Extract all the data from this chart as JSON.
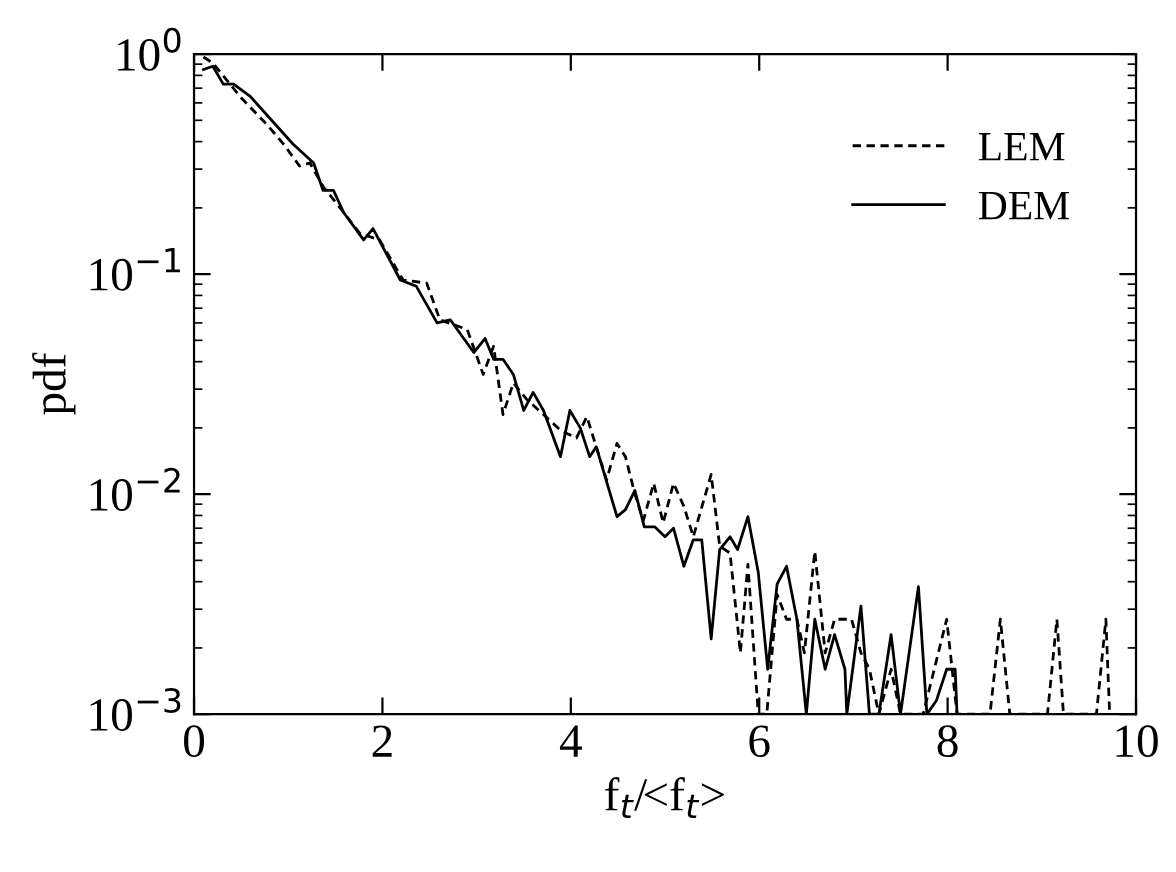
{
  "chart_data": {
    "type": "line",
    "xlabel": "f$_{t}$/<f$_{t}$>",
    "ylabel": "pdf",
    "xlim": [
      0,
      10
    ],
    "xticks": [
      0,
      2,
      4,
      6,
      8,
      10
    ],
    "ylim": [
      0.001,
      1
    ],
    "yticks": [
      {
        "value": 0.001,
        "label": "10$^{−3}$"
      },
      {
        "value": 0.01,
        "label": "10$^{−2}$"
      },
      {
        "value": 0.1,
        "label": "10$^{−1}$"
      },
      {
        "value": 1,
        "label": "10$^{0}$"
      }
    ],
    "log": "y",
    "grid": false,
    "legend": "top right",
    "marker": "none",
    "series": [
      {
        "name": "LEM",
        "color": "#000000",
        "line_style": "dashed",
        "x": [
          0.1,
          0.2,
          0.49,
          0.77,
          0.95,
          1.12,
          1.23,
          1.37,
          1.55,
          1.76,
          1.97,
          2.22,
          2.47,
          2.61,
          2.9,
          3.07,
          3.18,
          3.28,
          3.39,
          3.53,
          3.71,
          3.89,
          4.06,
          4.17,
          4.38,
          4.49,
          4.58,
          4.68,
          4.77,
          4.88,
          4.98,
          5.09,
          5.2,
          5.3,
          5.49,
          5.58,
          5.69,
          5.8,
          5.88,
          5.99,
          6.08,
          6.19,
          6.29,
          6.4,
          6.48,
          6.59,
          6.7,
          6.8,
          6.98,
          7.08,
          7.17,
          7.27,
          7.4,
          7.5,
          7.74,
          7.99,
          8.1,
          8.45,
          8.56,
          8.66,
          9.06,
          9.16,
          9.23,
          9.58,
          9.68,
          9.72
        ],
        "values": [
          0.97,
          0.91,
          0.64,
          0.48,
          0.39,
          0.31,
          0.32,
          0.25,
          0.2,
          0.153,
          0.143,
          0.094,
          0.091,
          0.062,
          0.056,
          0.035,
          0.047,
          0.023,
          0.032,
          0.027,
          0.023,
          0.0195,
          0.018,
          0.0225,
          0.0116,
          0.017,
          0.0148,
          0.01,
          0.0076,
          0.0112,
          0.0074,
          0.0112,
          0.0088,
          0.0064,
          0.0123,
          0.0058,
          0.0054,
          0.0019,
          0.0048,
          0.001,
          0.001,
          0.0035,
          0.0027,
          0.0027,
          0.0019,
          0.0055,
          0.0019,
          0.0027,
          0.0027,
          0.0019,
          0.0016,
          0.001,
          0.0016,
          0.001,
          0.001,
          0.0027,
          0.001,
          0.001,
          0.0027,
          0.001,
          0.001,
          0.0027,
          0.001,
          0.001,
          0.0027,
          0.001
        ]
      },
      {
        "name": "DEM",
        "color": "#000000",
        "line_style": "solid",
        "x": [
          0.1,
          0.2,
          0.31,
          0.42,
          0.6,
          1.05,
          1.27,
          1.37,
          1.48,
          1.59,
          1.8,
          1.9,
          2.19,
          2.36,
          2.58,
          2.72,
          2.97,
          3.09,
          3.18,
          3.28,
          3.39,
          3.5,
          3.6,
          3.71,
          3.89,
          3.99,
          4.1,
          4.2,
          4.27,
          4.49,
          4.58,
          4.68,
          4.78,
          4.89,
          5.0,
          5.09,
          5.2,
          5.3,
          5.39,
          5.49,
          5.58,
          5.69,
          5.77,
          5.88,
          5.99,
          6.09,
          6.19,
          6.29,
          6.4,
          6.5,
          6.59,
          6.7,
          6.8,
          6.91,
          6.93,
          7.08,
          7.17,
          7.27,
          7.4,
          7.5,
          7.69,
          7.78,
          7.88,
          7.99,
          8.08,
          8.1
        ],
        "values": [
          0.85,
          0.88,
          0.73,
          0.73,
          0.64,
          0.39,
          0.32,
          0.24,
          0.24,
          0.19,
          0.143,
          0.161,
          0.094,
          0.088,
          0.06,
          0.062,
          0.044,
          0.051,
          0.041,
          0.041,
          0.035,
          0.024,
          0.029,
          0.024,
          0.0148,
          0.024,
          0.02,
          0.0148,
          0.0164,
          0.0079,
          0.0085,
          0.0104,
          0.0071,
          0.0071,
          0.0064,
          0.007,
          0.0047,
          0.0062,
          0.0062,
          0.0022,
          0.0056,
          0.0064,
          0.0056,
          0.0079,
          0.0044,
          0.0016,
          0.0039,
          0.0047,
          0.0027,
          0.001,
          0.0027,
          0.0016,
          0.0023,
          0.0016,
          0.001,
          0.0031,
          0.001,
          0.001,
          0.0023,
          0.001,
          0.0038,
          0.001,
          0.00115,
          0.0016,
          0.0016,
          0.001
        ]
      }
    ]
  }
}
